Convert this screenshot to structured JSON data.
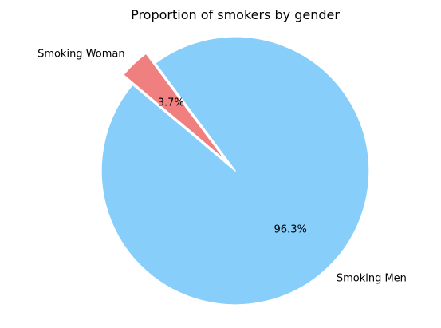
{
  "chart_data": {
    "type": "pie",
    "title": "Proportion of smokers by gender",
    "slices": [
      {
        "label": "Smoking Men",
        "value": 96.3,
        "pct_label": "96.3%",
        "color": "#87cefa",
        "explode": 0
      },
      {
        "label": "Smoking Woman",
        "value": 3.7,
        "pct_label": "3.7%",
        "color": "#f08080",
        "explode": 0.1
      }
    ],
    "start_angle": 140,
    "legend": "none"
  }
}
